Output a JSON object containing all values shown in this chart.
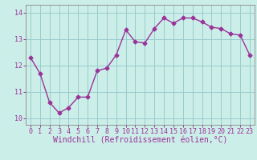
{
  "x": [
    0,
    1,
    2,
    3,
    4,
    5,
    6,
    7,
    8,
    9,
    10,
    11,
    12,
    13,
    14,
    15,
    16,
    17,
    18,
    19,
    20,
    21,
    22,
    23
  ],
  "y": [
    12.3,
    11.7,
    10.6,
    10.2,
    10.4,
    10.8,
    10.8,
    11.8,
    11.9,
    12.4,
    13.35,
    12.9,
    12.85,
    13.4,
    13.8,
    13.6,
    13.8,
    13.8,
    13.65,
    13.45,
    13.4,
    13.2,
    13.15,
    12.4
  ],
  "line_color": "#993399",
  "marker": "D",
  "markersize": 2.5,
  "bg_color": "#cceee8",
  "grid_color": "#99cccc",
  "xlabel": "Windchill (Refroidissement éolien,°C)",
  "xlabel_color": "#993399",
  "tick_color": "#993399",
  "label_color": "#993399",
  "xlim": [
    -0.5,
    23.5
  ],
  "ylim": [
    9.75,
    14.3
  ],
  "yticks": [
    10,
    11,
    12,
    13,
    14
  ],
  "xticks": [
    0,
    1,
    2,
    3,
    4,
    5,
    6,
    7,
    8,
    9,
    10,
    11,
    12,
    13,
    14,
    15,
    16,
    17,
    18,
    19,
    20,
    21,
    22,
    23
  ],
  "tick_fontsize": 6.0,
  "xlabel_fontsize": 7.0,
  "linewidth": 1.0
}
